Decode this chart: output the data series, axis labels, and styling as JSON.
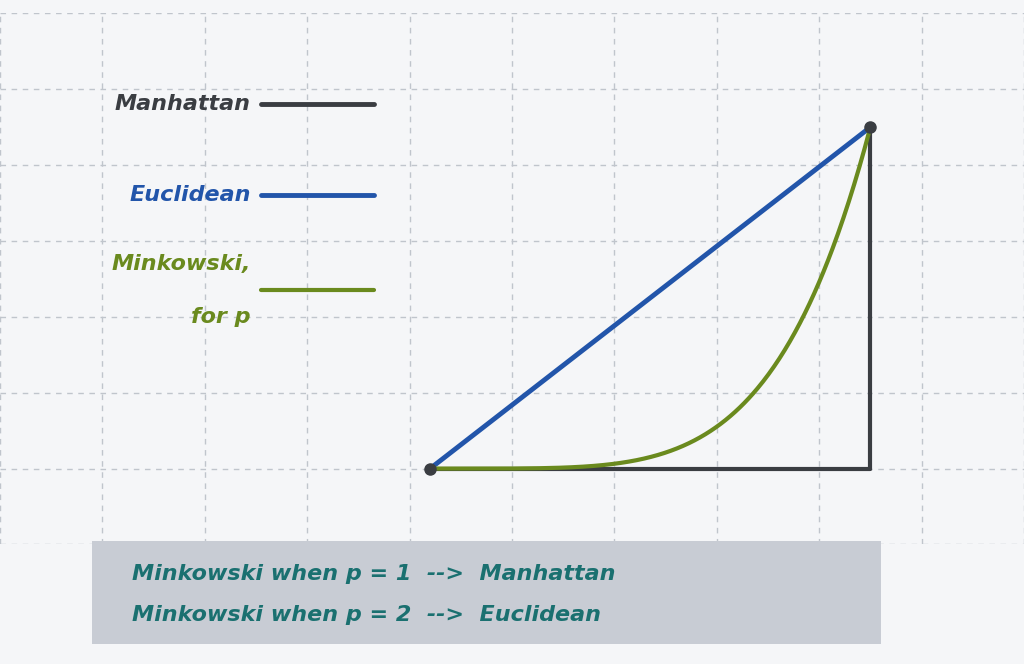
{
  "bg_color": "#eaecf0",
  "card_color": "#f5f6f8",
  "grid_color": "#c0c5cc",
  "border_color": "#a8adb5",
  "manhattan_color": "#3a3d42",
  "euclidean_color": "#2255aa",
  "minkowski_color": "#6a8a1e",
  "triangle_color": "#3a3d42",
  "annotation_box_color": "#c8ccd4",
  "annotation_text_color": "#1a7070",
  "annotation_line1": "Minkowski when p = 1  -->  Manhattan",
  "annotation_line2": "Minkowski when p = 2  -->  Euclidean",
  "legend_manhattan": "Manhattan",
  "legend_euclidean": "Euclidean",
  "legend_minkowski_1": "Minkowski,",
  "legend_minkowski_2": "for p",
  "lw_manhattan": 3.5,
  "lw_euclidean": 3.5,
  "lw_minkowski": 3.0,
  "lw_triangle": 3.0,
  "font_size_legend": 16,
  "font_size_annotation": 16
}
